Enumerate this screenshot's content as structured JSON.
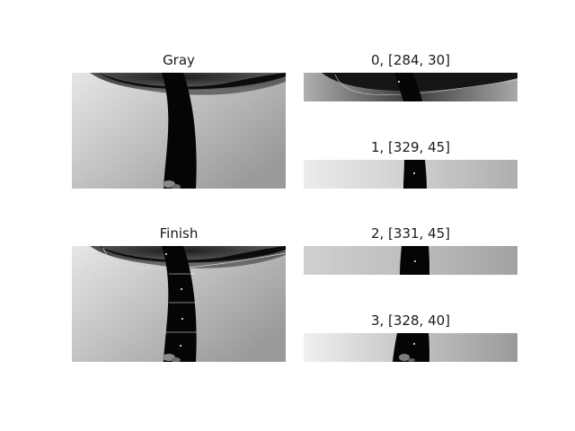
{
  "panels": {
    "gray": {
      "title": "Gray"
    },
    "finish": {
      "title": "Finish"
    },
    "slice0": {
      "title": "0, [284, 30]"
    },
    "slice1": {
      "title": "1, [329, 45]"
    },
    "slice2": {
      "title": "2, [331, 45]"
    },
    "slice3": {
      "title": "3, [328, 40]"
    }
  }
}
